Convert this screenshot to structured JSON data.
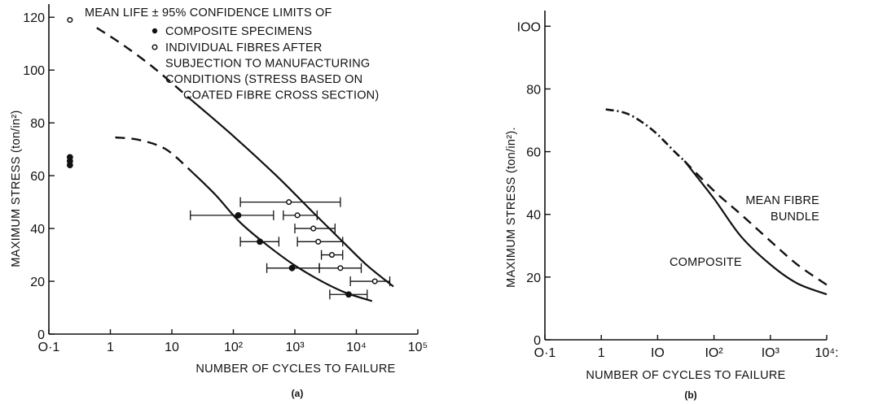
{
  "chart_data": [
    {
      "type": "scatter",
      "panel_label": "(a)",
      "xlabel": "NUMBER OF CYCLES TO FAILURE",
      "ylabel": "MAXIMUM STRESS (ton/in²)",
      "x_scale": "log",
      "xlim": [
        0.1,
        100000
      ],
      "ylim": [
        0,
        125
      ],
      "x_ticks": [
        0.1,
        1,
        10,
        100,
        1000,
        10000,
        100000
      ],
      "x_tick_labels": [
        "O·1",
        "1",
        "10",
        "10²",
        "10³",
        "10⁴",
        "10⁵"
      ],
      "y_ticks": [
        0,
        20,
        40,
        60,
        80,
        100,
        120
      ],
      "y_tick_labels": [
        "0",
        "20",
        "40",
        "60",
        "80",
        "100",
        "120"
      ],
      "legend": {
        "title": "MEAN LIFE ± 95% CONFIDENCE LIMITS OF",
        "entries": [
          {
            "marker": "filled",
            "lines": [
              "COMPOSITE SPECIMENS"
            ]
          },
          {
            "marker": "open",
            "lines": [
              "INDIVIDUAL FIBRES AFTER",
              "SUBJECTION TO MANUFACTURING",
              "CONDITIONS (STRESS BASED ON",
              "COATED FIBRE CROSS SECTION)"
            ]
          }
        ]
      },
      "series": [
        {
          "name": "COMPOSITE SPECIMENS",
          "marker": "filled",
          "points": [
            {
              "x": 120,
              "y": 45,
              "xerr": [
                20,
                450
              ]
            },
            {
              "x": 270,
              "y": 35,
              "xerr": [
                130,
                550
              ]
            },
            {
              "x": 900,
              "y": 25,
              "xerr": [
                350,
                2500
              ]
            },
            {
              "x": 7500,
              "y": 15,
              "xerr": [
                3700,
                15000
              ]
            },
            {
              "x": 0.22,
              "y": 67
            },
            {
              "x": 0.22,
              "y": 65.5
            },
            {
              "x": 0.22,
              "y": 64
            }
          ]
        },
        {
          "name": "INDIVIDUAL FIBRES AFTER SUBJECTION TO MANUFACTURING CONDITIONS (STRESS BASED ON COATED FIBRE CROSS SECTION)",
          "marker": "open",
          "points": [
            {
              "x": 800,
              "y": 50,
              "xerr": [
                130,
                5500
              ]
            },
            {
              "x": 1100,
              "y": 45,
              "xerr": [
                650,
                2300
              ]
            },
            {
              "x": 2000,
              "y": 40,
              "xerr": [
                1000,
                4500
              ]
            },
            {
              "x": 2400,
              "y": 35,
              "xerr": [
                1100,
                6000
              ]
            },
            {
              "x": 4000,
              "y": 30,
              "xerr": [
                2700,
                6000
              ]
            },
            {
              "x": 5500,
              "y": 25,
              "xerr": [
                2500,
                12000
              ]
            },
            {
              "x": 20000,
              "y": 20,
              "xerr": [
                8000,
                35000
              ]
            },
            {
              "x": 0.22,
              "y": 119
            }
          ]
        }
      ],
      "curves": [
        {
          "style": "dashed",
          "points": [
            [
              0.6,
              116
            ],
            [
              1.5,
              110
            ],
            [
              5,
              101
            ],
            [
              20,
              89
            ]
          ]
        },
        {
          "style": "solid",
          "points": [
            [
              20,
              89
            ],
            [
              100,
              75
            ],
            [
              500,
              60
            ],
            [
              2000,
              46
            ],
            [
              6000,
              35
            ],
            [
              15000,
              26
            ],
            [
              40000,
              18
            ]
          ]
        },
        {
          "style": "dashed",
          "points": [
            [
              1.2,
              74.5
            ],
            [
              3,
              73.5
            ],
            [
              8,
              70
            ],
            [
              20,
              62
            ]
          ]
        },
        {
          "style": "solid",
          "points": [
            [
              20,
              62
            ],
            [
              50,
              53
            ],
            [
              120,
              43
            ],
            [
              300,
              35
            ],
            [
              1000,
              26
            ],
            [
              3000,
              19.5
            ],
            [
              7000,
              15.5
            ],
            [
              18000,
              12.5
            ]
          ]
        }
      ]
    },
    {
      "type": "line",
      "panel_label": "(b)",
      "xlabel": "NUMBER OF CYCLES TO FAILURE",
      "ylabel": "MAXIMUM STRESS (ton/in²).",
      "x_scale": "log",
      "xlim": [
        0.1,
        10000
      ],
      "ylim": [
        0,
        105
      ],
      "x_ticks": [
        0.1,
        1,
        10,
        100,
        1000,
        10000
      ],
      "x_tick_labels": [
        "O·1",
        "1",
        "IO",
        "IO²",
        "IO³",
        "10⁴:"
      ],
      "y_ticks": [
        0,
        20,
        40,
        60,
        80,
        100
      ],
      "y_tick_labels": [
        "0",
        "20",
        "40",
        "60",
        "80",
        "IOO"
      ],
      "series": [
        {
          "name": "MEAN FIBRE BUNDLE",
          "label_lines": [
            "MEAN FIBRE",
            "BUNDLE"
          ],
          "style": "dashed",
          "points": [
            [
              30,
              57
            ],
            [
              100,
              47.5
            ],
            [
              300,
              40
            ],
            [
              1000,
              31.5
            ],
            [
              3000,
              24
            ],
            [
              10000,
              17.5
            ]
          ]
        },
        {
          "name": "COMPOSITE",
          "label_lines": [
            "COMPOSITE"
          ],
          "style": "solid",
          "points": [
            [
              30,
              57
            ],
            [
              100,
              45
            ],
            [
              300,
              33
            ],
            [
              1000,
              24
            ],
            [
              3000,
              18
            ],
            [
              10000,
              14.5
            ]
          ]
        },
        {
          "name": "",
          "style": "dashdot",
          "points": [
            [
              1.2,
              73.5
            ],
            [
              3,
              72
            ],
            [
              8,
              67
            ],
            [
              20,
              60
            ],
            [
              30,
              57
            ]
          ]
        }
      ]
    }
  ]
}
